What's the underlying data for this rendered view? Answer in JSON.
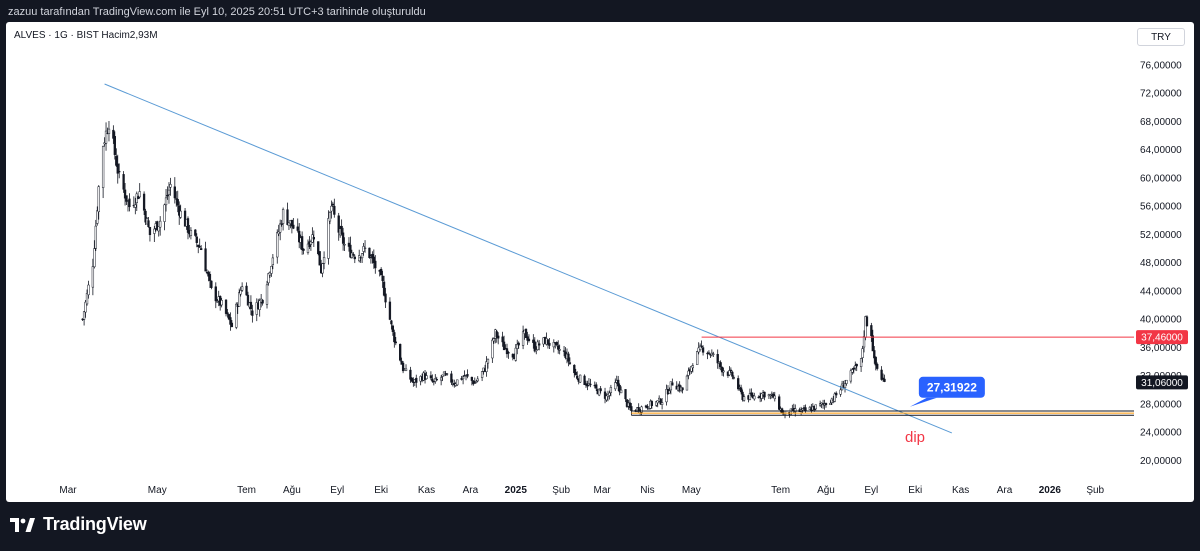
{
  "header": {
    "text": "zazuu tarafından TradingView.com ile Eyl 10, 2025 20:51 UTC+3 tarihinde oluşturuldu"
  },
  "symbol_line": "ALVES · 1G · BIST  Hacim2,93M",
  "currency": "TRY",
  "footer": {
    "brand": "TradingView",
    "logo_icon": "tradingview-logo-icon"
  },
  "chart_data": {
    "type": "candlestick",
    "title": "ALVES · 1G · BIST",
    "volume_label": "Hacim2,93M",
    "currency": "TRY",
    "y_ticks": [
      "76,00000",
      "72,00000",
      "68,00000",
      "64,00000",
      "60,00000",
      "56,00000",
      "52,00000",
      "48,00000",
      "44,00000",
      "40,00000",
      "36,00000",
      "32,00000",
      "28,00000",
      "24,00000",
      "20,00000"
    ],
    "ylim": [
      17.8,
      78.4
    ],
    "x_ticks": [
      {
        "label": "Mar",
        "date": "2024-03-01",
        "bold": false
      },
      {
        "label": "May",
        "date": "2024-05-01",
        "bold": false
      },
      {
        "label": "Tem",
        "date": "2024-07-01",
        "bold": false
      },
      {
        "label": "Ağu",
        "date": "2024-08-01",
        "bold": false
      },
      {
        "label": "Eyl",
        "date": "2024-09-01",
        "bold": false
      },
      {
        "label": "Eki",
        "date": "2024-10-01",
        "bold": false
      },
      {
        "label": "Kas",
        "date": "2024-11-01",
        "bold": false
      },
      {
        "label": "Ara",
        "date": "2024-12-01",
        "bold": false
      },
      {
        "label": "2025",
        "date": "2025-01-01",
        "bold": true
      },
      {
        "label": "Şub",
        "date": "2025-02-01",
        "bold": false
      },
      {
        "label": "Mar",
        "date": "2025-03-01",
        "bold": false
      },
      {
        "label": "Nis",
        "date": "2025-04-01",
        "bold": false
      },
      {
        "label": "May",
        "date": "2025-05-01",
        "bold": false
      },
      {
        "label": "Tem",
        "date": "2025-07-01",
        "bold": false
      },
      {
        "label": "Ağu",
        "date": "2025-08-01",
        "bold": false
      },
      {
        "label": "Eyl",
        "date": "2025-09-01",
        "bold": false
      },
      {
        "label": "Eki",
        "date": "2025-10-01",
        "bold": false
      },
      {
        "label": "Kas",
        "date": "2025-11-01",
        "bold": false
      },
      {
        "label": "Ara",
        "date": "2025-12-01",
        "bold": false
      },
      {
        "label": "2026",
        "date": "2026-01-01",
        "bold": true
      },
      {
        "label": "Şub",
        "date": "2026-02-01",
        "bold": false
      }
    ],
    "price_path": [
      [
        "2024-03-11",
        40
      ],
      [
        "2024-03-18",
        48
      ],
      [
        "2024-03-24",
        64
      ],
      [
        "2024-03-29",
        68
      ],
      [
        "2024-04-05",
        60
      ],
      [
        "2024-04-12",
        56
      ],
      [
        "2024-04-19",
        58
      ],
      [
        "2024-04-26",
        52
      ],
      [
        "2024-05-03",
        54
      ],
      [
        "2024-05-10",
        59
      ],
      [
        "2024-05-17",
        55
      ],
      [
        "2024-05-24",
        52
      ],
      [
        "2024-05-31",
        50
      ],
      [
        "2024-06-07",
        44
      ],
      [
        "2024-06-14",
        42
      ],
      [
        "2024-06-21",
        39
      ],
      [
        "2024-06-28",
        45
      ],
      [
        "2024-07-05",
        41
      ],
      [
        "2024-07-12",
        43
      ],
      [
        "2024-07-19",
        49
      ],
      [
        "2024-07-26",
        55
      ],
      [
        "2024-08-02",
        53
      ],
      [
        "2024-08-09",
        50
      ],
      [
        "2024-08-16",
        52
      ],
      [
        "2024-08-21",
        47
      ],
      [
        "2024-08-28",
        56
      ],
      [
        "2024-09-01",
        53
      ],
      [
        "2024-09-07",
        50
      ],
      [
        "2024-09-14",
        49
      ],
      [
        "2024-09-21",
        50
      ],
      [
        "2024-09-28",
        47
      ],
      [
        "2024-10-02",
        45
      ],
      [
        "2024-10-09",
        38
      ],
      [
        "2024-10-16",
        33
      ],
      [
        "2024-10-23",
        31
      ],
      [
        "2024-10-30",
        32
      ],
      [
        "2024-11-06",
        31
      ],
      [
        "2024-11-13",
        32
      ],
      [
        "2024-11-20",
        31
      ],
      [
        "2024-11-27",
        32
      ],
      [
        "2024-12-04",
        31
      ],
      [
        "2024-12-11",
        33
      ],
      [
        "2024-12-18",
        38
      ],
      [
        "2024-12-24",
        36
      ],
      [
        "2024-12-31",
        35
      ],
      [
        "2025-01-07",
        38
      ],
      [
        "2025-01-14",
        36
      ],
      [
        "2025-01-21",
        37
      ],
      [
        "2025-01-28",
        36
      ],
      [
        "2025-02-04",
        35
      ],
      [
        "2025-02-11",
        32
      ],
      [
        "2025-02-18",
        31
      ],
      [
        "2025-02-25",
        30
      ],
      [
        "2025-03-04",
        29
      ],
      [
        "2025-03-11",
        31
      ],
      [
        "2025-03-18",
        28
      ],
      [
        "2025-03-21",
        27
      ],
      [
        "2025-03-28",
        27.5
      ],
      [
        "2025-04-04",
        28
      ],
      [
        "2025-04-11",
        28.5
      ],
      [
        "2025-04-18",
        31
      ],
      [
        "2025-04-25",
        30
      ],
      [
        "2025-05-02",
        34
      ],
      [
        "2025-05-08",
        36
      ],
      [
        "2025-05-15",
        35
      ],
      [
        "2025-05-22",
        33
      ],
      [
        "2025-05-29",
        32
      ],
      [
        "2025-06-05",
        29
      ],
      [
        "2025-06-12",
        29
      ],
      [
        "2025-06-19",
        29.5
      ],
      [
        "2025-06-26",
        29
      ],
      [
        "2025-07-03",
        26.5
      ],
      [
        "2025-07-10",
        27
      ],
      [
        "2025-07-17",
        27
      ],
      [
        "2025-07-24",
        27.5
      ],
      [
        "2025-07-31",
        28
      ],
      [
        "2025-08-07",
        29
      ],
      [
        "2025-08-14",
        31
      ],
      [
        "2025-08-21",
        33
      ],
      [
        "2025-08-25",
        34
      ],
      [
        "2025-08-28",
        40
      ],
      [
        "2025-09-01",
        38
      ],
      [
        "2025-09-03",
        34
      ],
      [
        "2025-09-07",
        32
      ],
      [
        "2025-09-10",
        31
      ]
    ],
    "trendline": {
      "from": {
        "date": "2024-03-26",
        "price": 73.3
      },
      "to": {
        "date": "2025-10-26",
        "price": 23.9
      },
      "color": "#5b9bd5"
    },
    "horizontal_lines": [
      {
        "price": 37.46,
        "from_date": "2025-05-08",
        "color": "#f23645",
        "label": "37,46000"
      },
      {
        "price": 27.0,
        "from_date": "2025-03-21",
        "color": "#131722"
      },
      {
        "price": 26.7,
        "from_date": "2025-03-21",
        "color": "#ff9800"
      },
      {
        "price": 26.4,
        "from_date": "2025-03-21",
        "color": "#131722"
      }
    ],
    "last_price": {
      "price": 31.06,
      "label": "31,06000",
      "color": "#131722"
    },
    "callout": {
      "label": "27,31922",
      "price": 27.31922,
      "date": "2025-09-28",
      "color": "#2962ff"
    },
    "annotations": [
      {
        "text": "dip",
        "date": "2025-09-24",
        "price": 22.6,
        "color": "#f23645"
      }
    ]
  }
}
